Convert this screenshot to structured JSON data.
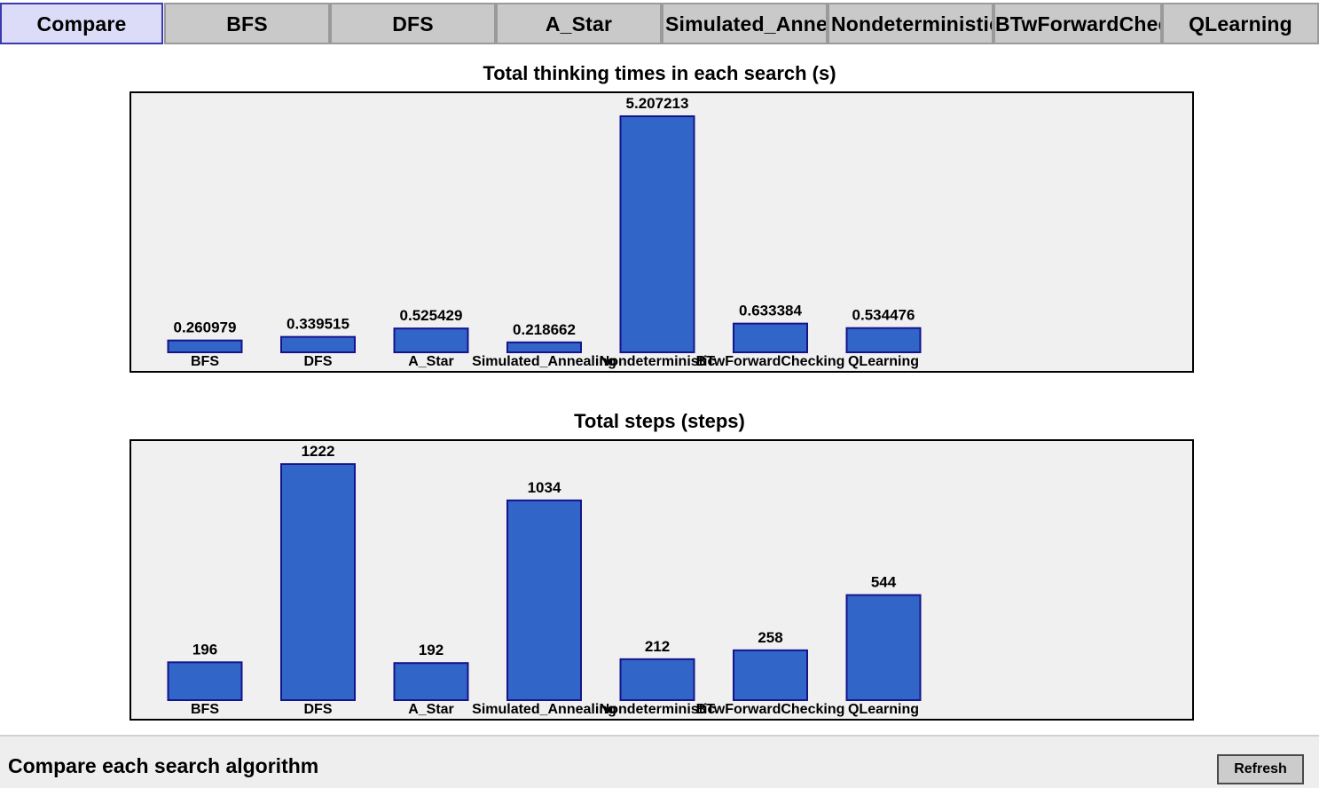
{
  "tabs": [
    {
      "label": "Compare",
      "active": true
    },
    {
      "label": "BFS"
    },
    {
      "label": "DFS"
    },
    {
      "label": "A_Star"
    },
    {
      "label": "Simulated_Annealing"
    },
    {
      "label": "Nondeterministic"
    },
    {
      "label": "BTwForwardChecking"
    },
    {
      "label": "QLearning"
    }
  ],
  "status": {
    "text": "Compare each search algorithm",
    "refresh_label": "Refresh"
  },
  "colors": {
    "bar_fill": "#3265c8",
    "bar_border": "#14148c",
    "plot_background": "#f0f0f0",
    "active_tab": "#dcdcf8"
  },
  "chart_data": [
    {
      "type": "bar",
      "title": "Total thinking times in each search (s)",
      "categories": [
        "BFS",
        "DFS",
        "A_Star",
        "Simulated_Annealing",
        "Nondeterministic",
        "BTwForwardChecking",
        "QLearning"
      ],
      "values": [
        0.260979,
        0.339515,
        0.525429,
        0.218662,
        5.207213,
        0.633384,
        0.534476
      ],
      "value_labels": [
        "0.260979",
        "0.339515",
        "0.525429",
        "0.218662",
        "5.207213",
        "0.633384",
        "0.534476"
      ],
      "ylim": [
        0,
        5.207213
      ],
      "grid": false
    },
    {
      "type": "bar",
      "title": "Total steps (steps)",
      "categories": [
        "BFS",
        "DFS",
        "A_Star",
        "Simulated_Annealing",
        "Nondeterministic",
        "BTwForwardChecking",
        "QLearning"
      ],
      "values": [
        196,
        1222,
        192,
        1034,
        212,
        258,
        544
      ],
      "value_labels": [
        "196",
        "1222",
        "192",
        "1034",
        "212",
        "258",
        "544"
      ],
      "ylim": [
        0,
        1222
      ],
      "grid": false
    }
  ]
}
